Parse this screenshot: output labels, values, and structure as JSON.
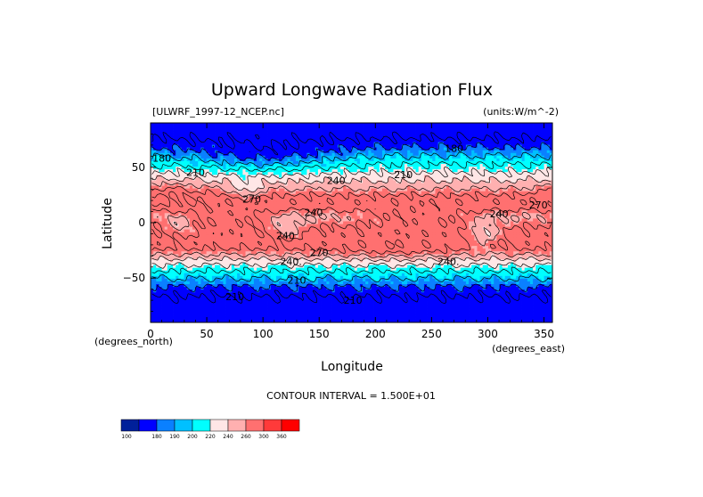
{
  "chart_data": {
    "type": "heatmap",
    "title": "Upward Longwave Radiation Flux",
    "file_label": "[ULWRF_1997-12_NCEP.nc]",
    "units_label": "(units:W/m^-2)",
    "xlabel": "Longitude",
    "ylabel": "Latitude",
    "x_unit_label": "(degrees_east)",
    "y_unit_label": "(degrees_north)",
    "xlim": [
      0,
      357.5
    ],
    "ylim": [
      -90,
      90
    ],
    "x_ticks": [
      "0",
      "50",
      "100",
      "150",
      "200",
      "250",
      "300",
      "350"
    ],
    "y_ticks": [
      "50",
      "0",
      "−50"
    ],
    "contour_interval_text": "CONTOUR INTERVAL = 1.500E+01",
    "colorbar": {
      "levels": [
        "100",
        "180",
        "190",
        "200",
        "220",
        "240",
        "260",
        "300",
        "360"
      ],
      "colors": [
        "#00209a",
        "#0000ff",
        "#0a80ff",
        "#00c0ff",
        "#00ffff",
        "#ffe6e6",
        "#ffb0b0",
        "#ff7070",
        "#ff3a3a",
        "#ff0000"
      ]
    },
    "contour_labels": [
      {
        "text": "180",
        "lon": 10,
        "lat": 55
      },
      {
        "text": "180",
        "lon": 270,
        "lat": 64
      },
      {
        "text": "210",
        "lon": 40,
        "lat": 42
      },
      {
        "text": "210",
        "lon": 225,
        "lat": 40
      },
      {
        "text": "240",
        "lon": 165,
        "lat": 35
      },
      {
        "text": "270",
        "lon": 90,
        "lat": 18
      },
      {
        "text": "240",
        "lon": 145,
        "lat": 6
      },
      {
        "text": "270",
        "lon": 345,
        "lat": 13
      },
      {
        "text": "240",
        "lon": 310,
        "lat": 5
      },
      {
        "text": "240",
        "lon": 120,
        "lat": -15
      },
      {
        "text": "270",
        "lon": 150,
        "lat": -30
      },
      {
        "text": "240.",
        "lon": 125,
        "lat": -38
      },
      {
        "text": "240.",
        "lon": 265,
        "lat": -38
      },
      {
        "text": "210",
        "lon": 130,
        "lat": -55
      },
      {
        "text": "210",
        "lon": 75,
        "lat": -70
      },
      {
        "text": "210",
        "lon": 180,
        "lat": -73
      }
    ]
  }
}
